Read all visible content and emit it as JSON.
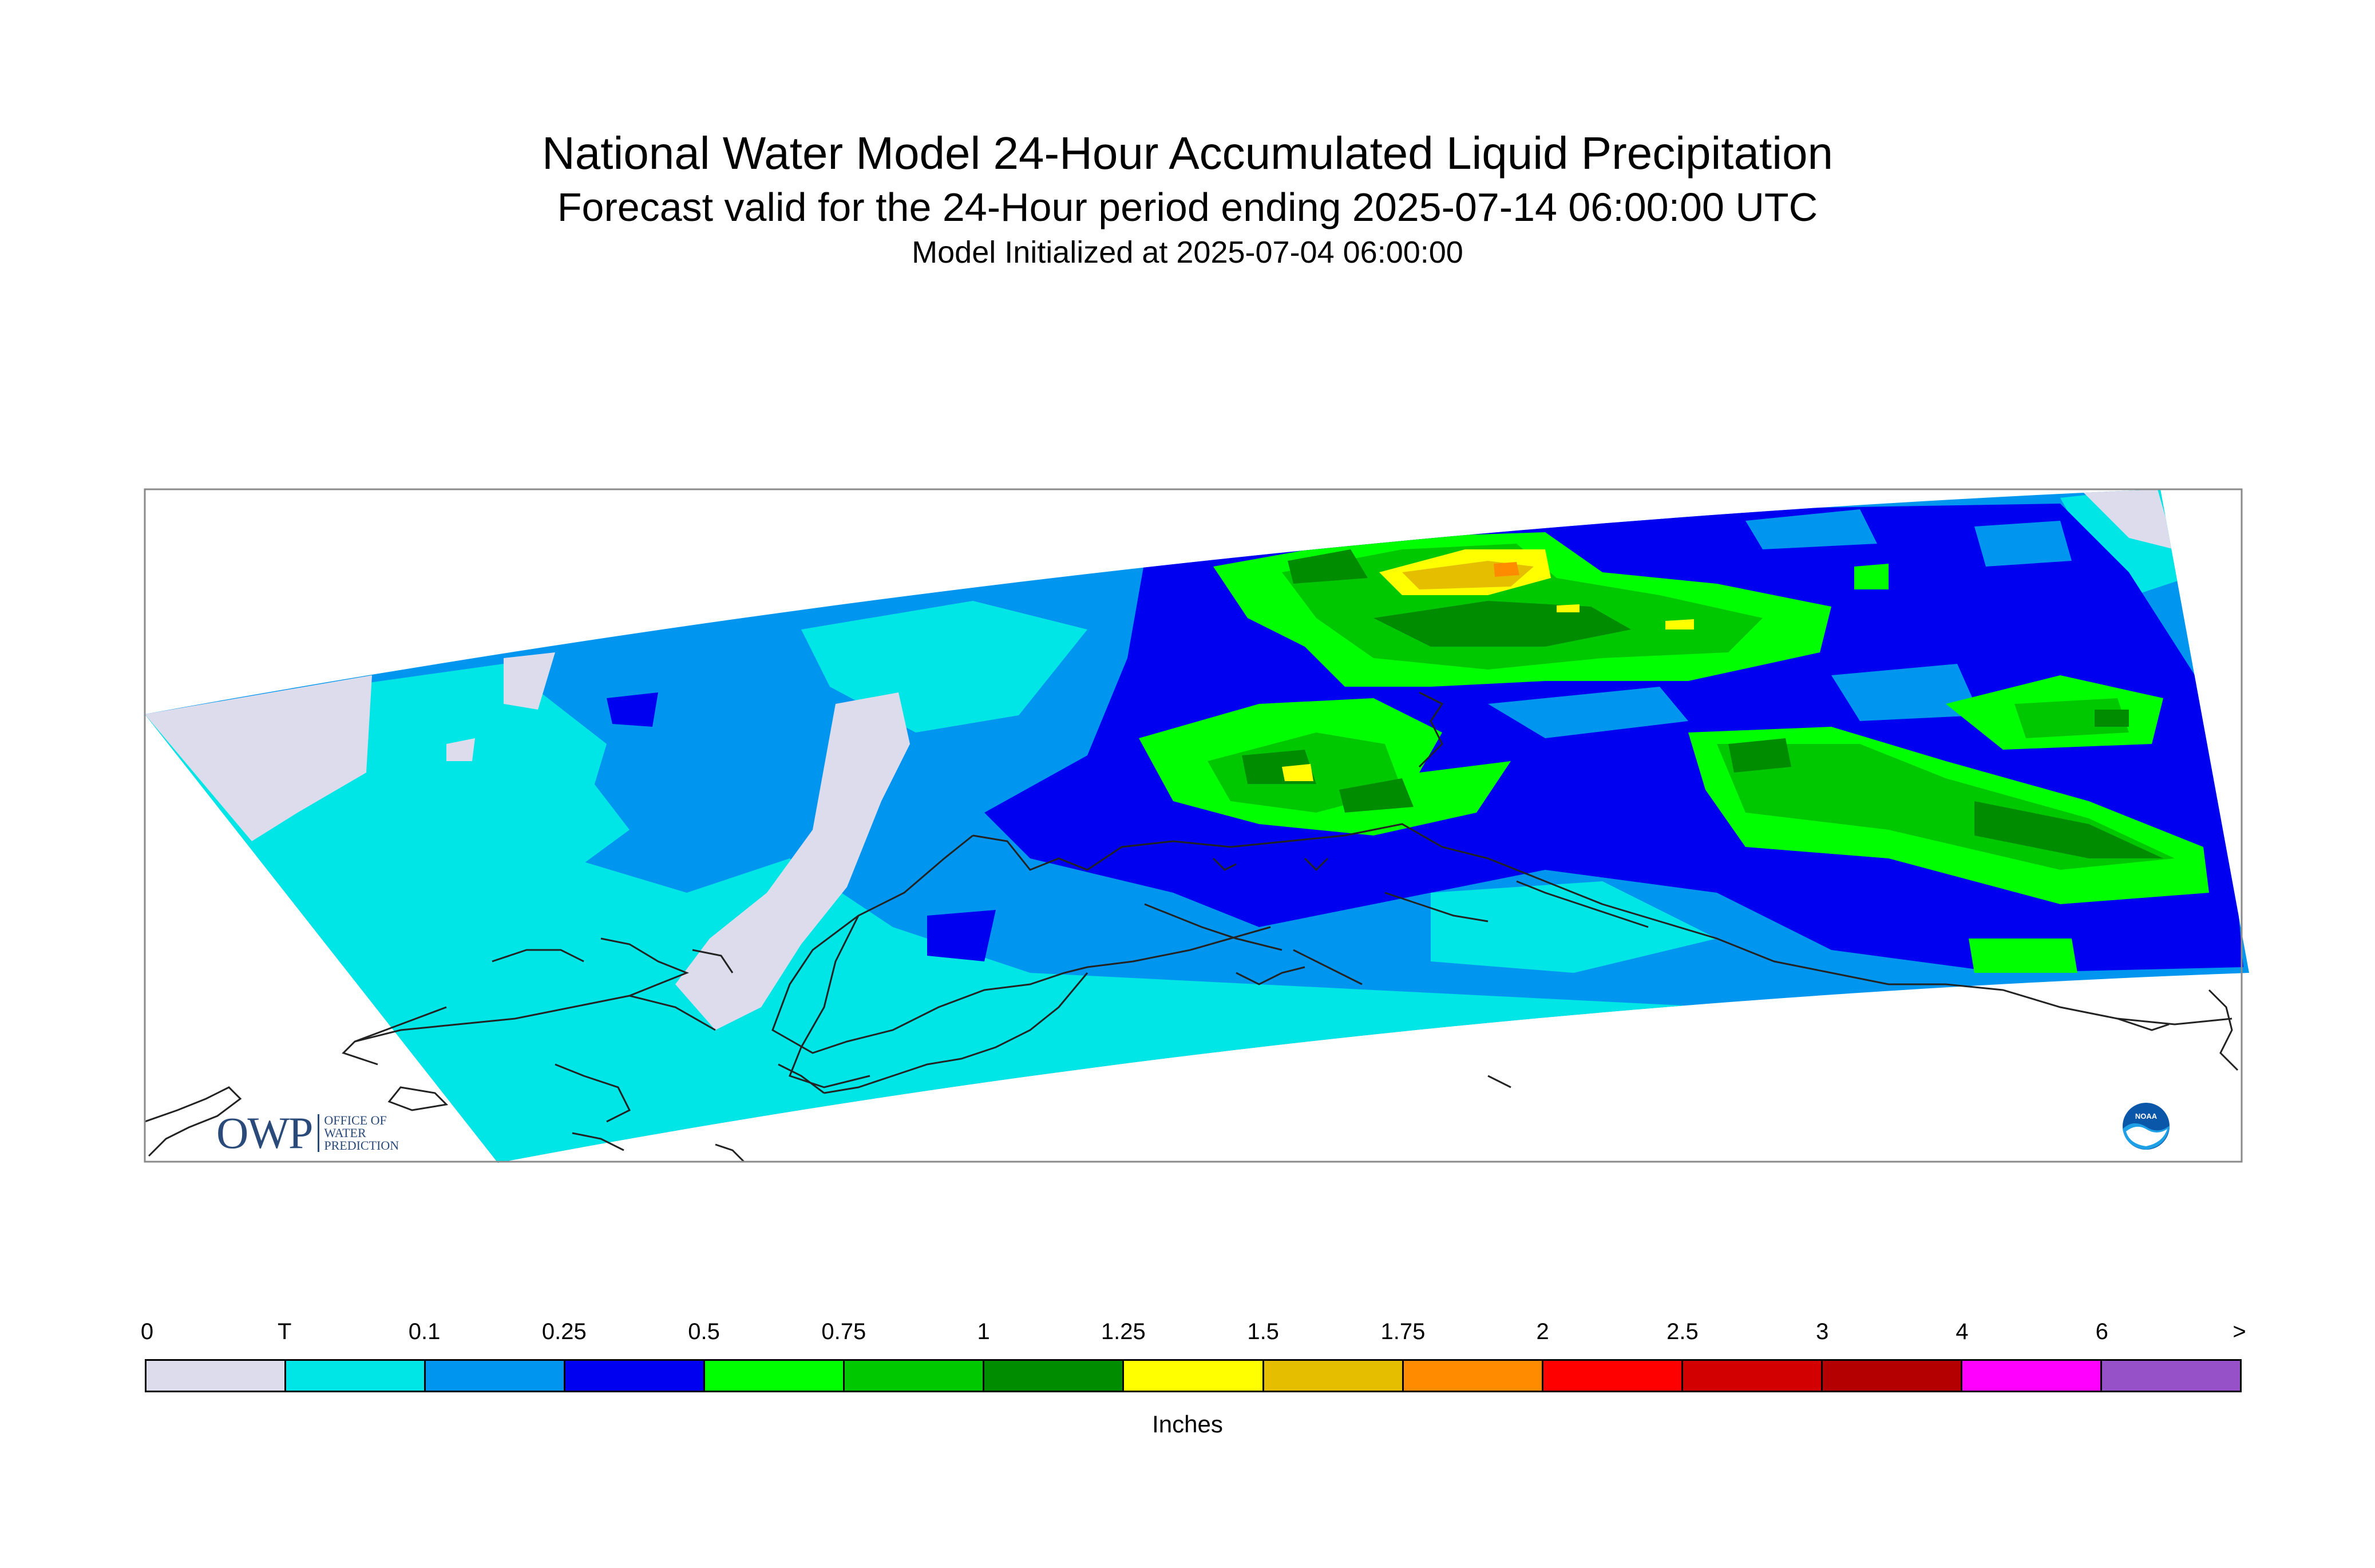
{
  "title": "National Water Model 24-Hour Accumulated Liquid Precipitation",
  "subtitle": "Forecast valid for the 24-Hour period ending 2025-07-14 06:00:00 UTC",
  "init_text": "Model Initialized at 2025-07-04 06:00:00",
  "legend": {
    "unit": "Inches",
    "labels": [
      "0",
      "T",
      "0.1",
      "0.25",
      "0.5",
      "0.75",
      "1",
      "1.25",
      "1.5",
      "1.75",
      "2",
      "2.5",
      "3",
      "4",
      "6",
      ">"
    ],
    "colors": [
      "#dcdcec",
      "#00e5e5",
      "#0096f0",
      "#0000f0",
      "#00ff00",
      "#00c800",
      "#008c00",
      "#ffff00",
      "#e6be00",
      "#ff8c00",
      "#ff0000",
      "#d20000",
      "#b40000",
      "#ff00ff",
      "#9650c8"
    ]
  },
  "logos": {
    "owp_mark": "OWP",
    "owp_sub": [
      "OFFICE OF",
      "WATER",
      "PREDICTION"
    ],
    "noaa": "NOAA"
  }
}
